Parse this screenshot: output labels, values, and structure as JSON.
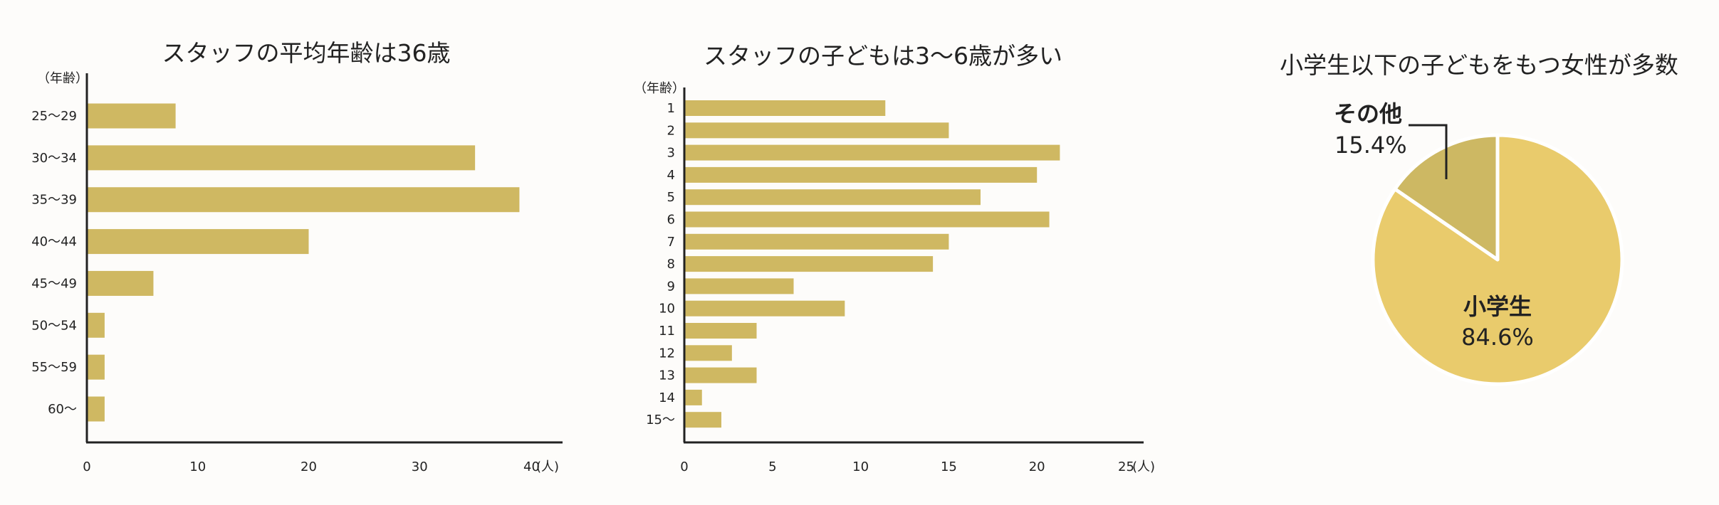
{
  "colors": {
    "bar": "#cfb862",
    "axis": "#222222",
    "pie_main": "#e9cb6c",
    "pie_other": "#cdb863",
    "background": "#fdfcfa"
  },
  "chart_data": [
    {
      "type": "bar",
      "orientation": "horizontal",
      "title": "スタッフの平均年齢は36歳",
      "ylabel": "（年齢）",
      "xlabel": "(人)",
      "categories": [
        "25〜29",
        "30〜34",
        "35〜39",
        "40〜44",
        "45〜49",
        "50〜54",
        "55〜59",
        "60〜"
      ],
      "values": [
        8,
        35,
        39,
        20,
        6,
        1.6,
        1.6,
        1.6
      ],
      "xlim": [
        0,
        42
      ],
      "xticks": [
        0,
        10,
        20,
        30,
        40
      ],
      "grid": false,
      "legend": "none"
    },
    {
      "type": "bar",
      "orientation": "horizontal",
      "title": "スタッフの子どもは3〜6歳が多い",
      "ylabel": "（年齢）",
      "xlabel": "(人)",
      "categories": [
        "1",
        "2",
        "3",
        "4",
        "5",
        "6",
        "7",
        "8",
        "9",
        "10",
        "11",
        "12",
        "13",
        "14",
        "15〜"
      ],
      "values": [
        11.4,
        15,
        21.3,
        20,
        16.8,
        20.7,
        15,
        14.1,
        6.2,
        9.1,
        4.1,
        2.7,
        4.1,
        1,
        2.1
      ],
      "xlim": [
        0,
        26
      ],
      "xticks": [
        0,
        5,
        10,
        15,
        20,
        25
      ],
      "grid": false,
      "legend": "none"
    },
    {
      "type": "pie",
      "title": "小学生以下の子どもをもつ女性が多数",
      "slices": [
        {
          "label": "小学生",
          "value": 84.6,
          "value_text": "84.6%"
        },
        {
          "label": "その他",
          "value": 15.4,
          "value_text": "15.4%"
        }
      ],
      "legend": "none"
    }
  ]
}
